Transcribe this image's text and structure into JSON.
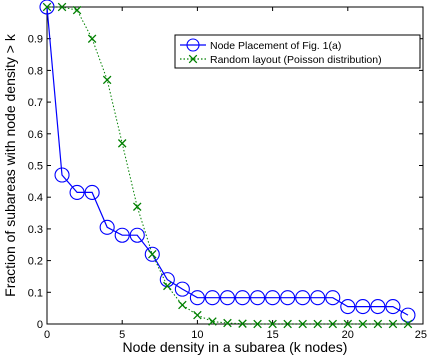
{
  "chart_data": {
    "type": "line",
    "title": "",
    "xlabel": "Node density in a subarea (k nodes)",
    "ylabel": "Fraction of subareas with node density > k",
    "xlim": [
      0,
      25
    ],
    "ylim": [
      0,
      1
    ],
    "xticks": [
      0,
      5,
      10,
      15,
      20,
      25
    ],
    "yticks": [
      0,
      0.1,
      0.2,
      0.3,
      0.4,
      0.5,
      0.6,
      0.7,
      0.8,
      0.9
    ],
    "legend_position": "top-right",
    "grid": false,
    "series": [
      {
        "name": "Node Placement of Fig. 1(a)",
        "color": "#0000ff",
        "marker": "circle",
        "line_style": "solid",
        "x": [
          0,
          1,
          2,
          3,
          4,
          5,
          6,
          7,
          8,
          9,
          10,
          11,
          12,
          13,
          14,
          15,
          16,
          17,
          18,
          19,
          20,
          21,
          22,
          23,
          24
        ],
        "y": [
          1.0,
          0.47,
          0.415,
          0.415,
          0.305,
          0.28,
          0.28,
          0.22,
          0.14,
          0.11,
          0.083,
          0.083,
          0.083,
          0.083,
          0.083,
          0.083,
          0.083,
          0.083,
          0.083,
          0.083,
          0.055,
          0.055,
          0.055,
          0.055,
          0.028
        ]
      },
      {
        "name": "Random layout (Poisson distribution)",
        "color": "#008000",
        "marker": "x",
        "line_style": "dotted",
        "x": [
          0,
          1,
          2,
          3,
          4,
          5,
          6,
          7,
          8,
          9,
          10,
          11,
          12,
          13,
          14,
          15,
          16,
          17,
          18,
          19,
          20,
          21,
          22,
          23,
          24
        ],
        "y": [
          1.0,
          1.0,
          0.99,
          0.9,
          0.77,
          0.57,
          0.37,
          0.22,
          0.12,
          0.06,
          0.028,
          0.008,
          0.003,
          0.001,
          0.0,
          0.0,
          0.0,
          0.0,
          0.0,
          0.0,
          0.0,
          0.0,
          0.0,
          0.0,
          0.0
        ]
      }
    ]
  }
}
